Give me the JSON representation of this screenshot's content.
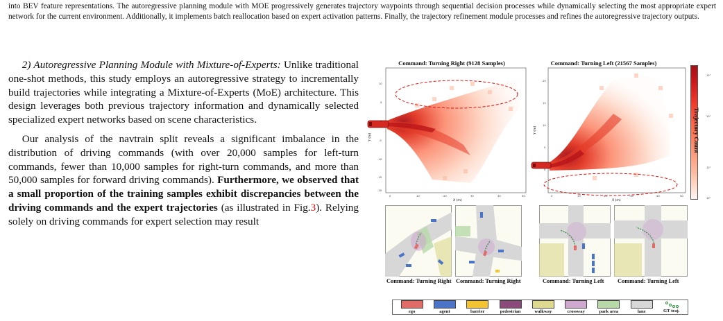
{
  "top_paragraph": "into BEV feature representations. The autoregressive planning module with MOE progressively generates trajectory waypoints through sequential decision processes while dynamically selecting the most appropriate expert network for the current environment. Additionally, it implements batch reallocation based on expert activation patterns. Finally, the trajectory refinement module processes and refines the autoregressive trajectory outputs.",
  "section": {
    "heading": "2) Autoregressive Planning Module with Mixture-of-Experts:",
    "para1": "Unlike traditional one-shot methods, this study employs an autoregressive strategy to incrementally build trajectories while integrating a Mixture-of-Experts (MoE) architecture. This design leverages both previous trajectory information and dynamically selected specialized expert networks based on scene characteristics.",
    "para2_plain": "Our analysis of the navtrain split reveals a significant imbalance in the distribution of driving commands (with over 20,000 samples for left-turn commands, fewer than 10,000 samples for right-turn commands, and more than 50,000 samples for forward driving commands). ",
    "para2_bold": "Furthermore, we observed that a small proportion of the training samples exhibit discrepancies between the driving commands and the expert trajectories",
    "para2_after": " (as illustrated in Fig.",
    "para2_ref": "3",
    "para2_end": "). Relying solely on driving commands for expert selection may result"
  },
  "figure": {
    "plot_right": {
      "title": "Command: Turning Right (9128 Samples)",
      "x_label": "X (m)",
      "y_label": "Y (m)",
      "x_ticks": [
        "0",
        "10",
        "20",
        "30",
        "40",
        "50"
      ],
      "y_ticks": [
        "10",
        "5",
        "0",
        "-5",
        "-10",
        "-15",
        "-20"
      ]
    },
    "plot_left": {
      "title": "Command: Turning Left (21567 Samples)",
      "x_label": "X (m)",
      "y_label": "Y (m)",
      "x_ticks": [
        "0",
        "10",
        "20",
        "30",
        "40",
        "50"
      ],
      "y_ticks": [
        "20",
        "15",
        "10",
        "5",
        "0"
      ]
    },
    "colorbar": {
      "label": "Trajectory Count",
      "ticks": [
        "10³",
        "10²",
        "10¹",
        "10⁰"
      ],
      "colors": [
        "#a50f15",
        "#ef3b2c",
        "#fc9272",
        "#fee0d2",
        "#fff5f0"
      ]
    },
    "scene_captions": [
      "Command: Turning Right",
      "Command: Turning Right",
      "Command: Turning Left",
      "Command: Turning Left"
    ],
    "legend": [
      {
        "label": "ego",
        "color": "#e06b67"
      },
      {
        "label": "agent",
        "color": "#4a74c8"
      },
      {
        "label": "barrier",
        "color": "#f2c431"
      },
      {
        "label": "pedestrian",
        "color": "#8b4b7a"
      },
      {
        "label": "walkway",
        "color": "#ddd98e"
      },
      {
        "label": "crossway",
        "color": "#cfa8cf"
      },
      {
        "label": "park area",
        "color": "#b7d9a7"
      },
      {
        "label": "lane",
        "color": "#d7d7d7"
      },
      {
        "label": "GT traj.",
        "color": "#2e8b3e"
      }
    ]
  }
}
